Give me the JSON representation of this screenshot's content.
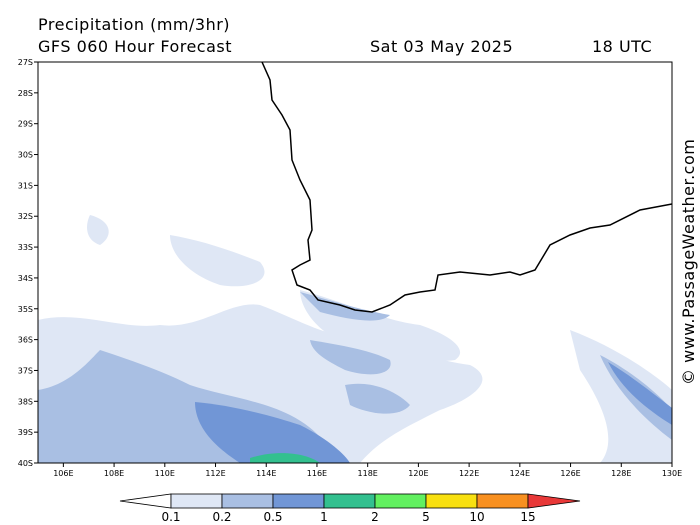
{
  "header": {
    "title": "Precipitation (mm/3hr)",
    "subtitle": "GFS 060 Hour Forecast",
    "date": "Sat 03 May 2025",
    "time": "18 UTC"
  },
  "map": {
    "latitudes": [
      "27S",
      "28S",
      "29S",
      "30S",
      "31S",
      "32S",
      "33S",
      "34S",
      "35S",
      "36S",
      "37S",
      "38S",
      "39S",
      "40S"
    ],
    "longitudes": [
      "106E",
      "108E",
      "110E",
      "112E",
      "114E",
      "116E",
      "118E",
      "120E",
      "122E",
      "124E",
      "126E",
      "128E",
      "130E"
    ]
  },
  "legend": {
    "labels": [
      "0.1",
      "0.2",
      "0.5",
      "1",
      "2",
      "5",
      "10",
      "15"
    ]
  },
  "watermark": "© www.PassageWeather.com"
}
